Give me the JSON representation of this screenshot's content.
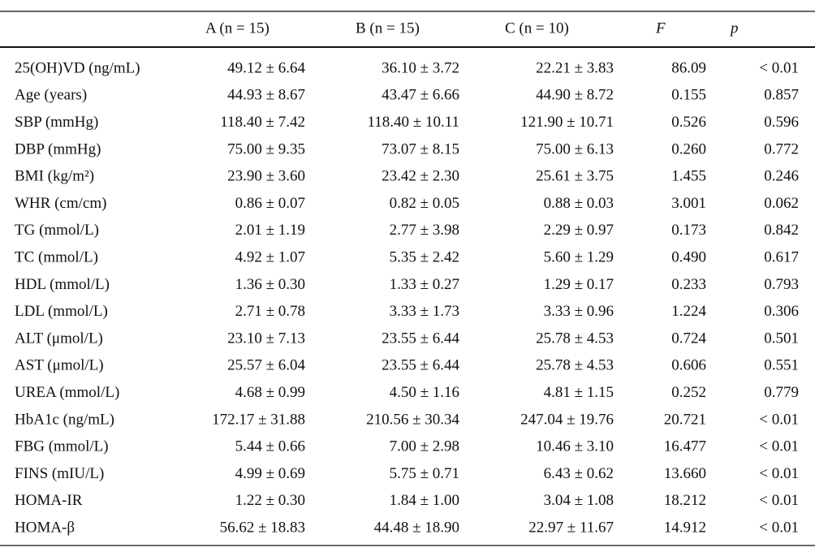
{
  "table": {
    "header": [
      "A (n = 15)",
      "B (n = 15)",
      "C (n = 10)",
      "F",
      "p"
    ],
    "rows": [
      [
        "25(OH)VD (ng/mL)",
        "49.12 ± 6.64",
        "36.10 ± 3.72",
        "22.21 ± 3.83",
        "86.09",
        "< 0.01"
      ],
      [
        "Age (years)",
        "44.93 ± 8.67",
        "43.47 ± 6.66",
        "44.90 ± 8.72",
        "0.155",
        "0.857"
      ],
      [
        "SBP (mmHg)",
        "118.40 ± 7.42",
        "118.40 ± 10.11",
        "121.90 ± 10.71",
        "0.526",
        "0.596"
      ],
      [
        "DBP (mmHg)",
        "75.00 ± 9.35",
        "73.07 ± 8.15",
        "75.00 ± 6.13",
        "0.260",
        "0.772"
      ],
      [
        "BMI (kg/m²)",
        "23.90 ± 3.60",
        "23.42 ± 2.30",
        "25.61 ± 3.75",
        "1.455",
        "0.246"
      ],
      [
        "WHR (cm/cm)",
        "0.86 ± 0.07",
        "0.82 ± 0.05",
        "0.88 ± 0.03",
        "3.001",
        "0.062"
      ],
      [
        "TG (mmol/L)",
        "2.01 ± 1.19",
        "2.77 ± 3.98",
        "2.29 ± 0.97",
        "0.173",
        "0.842"
      ],
      [
        "TC (mmol/L)",
        "4.92 ± 1.07",
        "5.35 ± 2.42",
        "5.60 ± 1.29",
        "0.490",
        "0.617"
      ],
      [
        "HDL (mmol/L)",
        "1.36 ± 0.30",
        "1.33 ± 0.27",
        "1.29 ± 0.17",
        "0.233",
        "0.793"
      ],
      [
        "LDL (mmol/L)",
        "2.71 ± 0.78",
        "3.33 ± 1.73",
        "3.33 ± 0.96",
        "1.224",
        "0.306"
      ],
      [
        "ALT (μmol/L)",
        "23.10 ± 7.13",
        "23.55 ± 6.44",
        "25.78 ± 4.53",
        "0.724",
        "0.501"
      ],
      [
        "AST (μmol/L)",
        "25.57 ± 6.04",
        "23.55 ± 6.44",
        "25.78 ± 4.53",
        "0.606",
        "0.551"
      ],
      [
        "UREA (mmol/L)",
        "4.68 ± 0.99",
        "4.50 ± 1.16",
        "4.81 ± 1.15",
        "0.252",
        "0.779"
      ],
      [
        "HbA1c (ng/mL)",
        "172.17 ± 31.88",
        "210.56 ± 30.34",
        "247.04 ± 19.76",
        "20.721",
        "< 0.01"
      ],
      [
        "FBG (mmol/L)",
        "5.44 ± 0.66",
        "7.00 ± 2.98",
        "10.46 ± 3.10",
        "16.477",
        "< 0.01"
      ],
      [
        "FINS (mIU/L)",
        "4.99 ± 0.69",
        "5.75 ± 0.71",
        "6.43 ± 0.62",
        "13.660",
        "< 0.01"
      ],
      [
        "HOMA-IR",
        "1.22 ± 0.30",
        "1.84 ± 1.00",
        "3.04 ± 1.08",
        "18.212",
        "< 0.01"
      ],
      [
        "HOMA-β",
        "56.62 ± 18.83",
        "44.48 ± 18.90",
        "22.97 ± 11.67",
        "14.912",
        "< 0.01"
      ]
    ]
  }
}
